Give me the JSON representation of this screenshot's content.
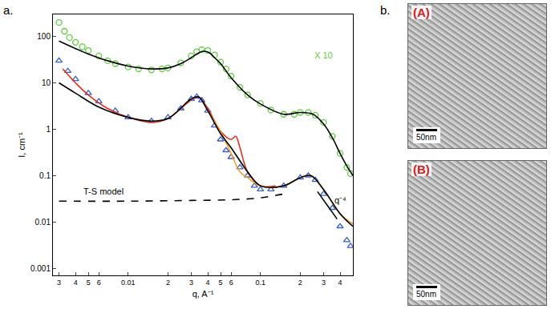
{
  "chart_data": {
    "type": "scatter",
    "log": true,
    "grid": false,
    "x_label": "q, A⁻¹",
    "y_label": "I, cm⁻¹",
    "xlim": [
      0.0027,
      0.5
    ],
    "ylim": [
      0.0007,
      300
    ],
    "xticks": [
      {
        "value": 0.003,
        "label": "3"
      },
      {
        "value": 0.004,
        "label": "4"
      },
      {
        "value": 0.005,
        "label": "5"
      },
      {
        "value": 0.006,
        "label": "6"
      },
      0.01,
      {
        "value": 0.02,
        "label": "2"
      },
      {
        "value": 0.03,
        "label": "3"
      },
      {
        "value": 0.04,
        "label": "4"
      },
      {
        "value": 0.05,
        "label": "5"
      },
      {
        "value": 0.06,
        "label": "6"
      },
      0.1,
      {
        "value": 0.2,
        "label": "2"
      },
      {
        "value": 0.3,
        "label": "3"
      },
      {
        "value": 0.4,
        "label": "4"
      }
    ],
    "yticks": [
      0.001,
      0.01,
      0.1,
      1,
      10,
      100
    ],
    "series": [
      {
        "type": "scatter",
        "marker": "circle-open",
        "color": "#5ccf3a",
        "x": [
          0.003,
          0.0033,
          0.0036,
          0.004,
          0.0045,
          0.005,
          0.006,
          0.007,
          0.008,
          0.01,
          0.012,
          0.015,
          0.018,
          0.02,
          0.025,
          0.03,
          0.033,
          0.036,
          0.04,
          0.045,
          0.05,
          0.055,
          0.06,
          0.07,
          0.08,
          0.1,
          0.12,
          0.15,
          0.18,
          0.2,
          0.23,
          0.26,
          0.3,
          0.35,
          0.4,
          0.45,
          0.48
        ],
        "values": [
          200,
          130,
          95,
          75,
          60,
          50,
          38,
          30,
          26,
          22,
          20,
          19,
          20,
          21,
          27,
          38,
          47,
          52,
          50,
          40,
          28,
          20,
          14,
          8,
          5.5,
          3.6,
          2.6,
          2.1,
          2.1,
          2.3,
          2.3,
          2.0,
          1.4,
          0.7,
          0.3,
          0.15,
          0.11
        ]
      },
      {
        "type": "line",
        "line_style": "solid",
        "color": "#000000",
        "x": [
          0.003,
          0.004,
          0.005,
          0.007,
          0.01,
          0.015,
          0.02,
          0.025,
          0.03,
          0.034,
          0.037,
          0.041,
          0.045,
          0.05,
          0.06,
          0.08,
          0.1,
          0.15,
          0.2,
          0.25,
          0.3,
          0.35,
          0.4,
          0.45,
          0.5
        ],
        "values": [
          80,
          55,
          42,
          30,
          23,
          20,
          21,
          26,
          35,
          44,
          48,
          45,
          35,
          26,
          13,
          5.5,
          3.5,
          2.1,
          2.3,
          2.1,
          1.3,
          0.65,
          0.3,
          0.16,
          0.1
        ]
      },
      {
        "type": "scatter",
        "marker": "triangle-up-open",
        "color": "#3a5fd0",
        "x": [
          0.003,
          0.0035,
          0.004,
          0.005,
          0.006,
          0.008,
          0.01,
          0.015,
          0.02,
          0.025,
          0.03,
          0.033,
          0.036,
          0.04,
          0.045,
          0.05,
          0.055,
          0.06,
          0.07,
          0.08,
          0.09,
          0.1,
          0.12,
          0.15,
          0.2,
          0.23,
          0.26,
          0.3,
          0.35,
          0.4,
          0.45,
          0.48
        ],
        "values": [
          30,
          18,
          12,
          6,
          4,
          2.5,
          1.8,
          1.5,
          1.8,
          2.8,
          4.5,
          5,
          4.2,
          2.5,
          1.2,
          0.6,
          0.35,
          0.25,
          0.15,
          0.1,
          0.06,
          0.05,
          0.05,
          0.06,
          0.09,
          0.1,
          0.08,
          0.04,
          0.02,
          0.008,
          0.004,
          0.003
        ]
      },
      {
        "type": "line",
        "line_style": "solid",
        "color": "#e03020",
        "x": [
          0.0032,
          0.004,
          0.005,
          0.007,
          0.01,
          0.015,
          0.02,
          0.03,
          0.034,
          0.04,
          0.05,
          0.06,
          0.065,
          0.07,
          0.08,
          0.1,
          0.13
        ],
        "values": [
          20,
          10,
          5.5,
          2.8,
          1.8,
          1.4,
          1.7,
          4.3,
          5,
          2.8,
          0.9,
          0.6,
          0.7,
          0.4,
          0.12,
          0.06,
          0.06
        ]
      },
      {
        "type": "line",
        "line_style": "solid",
        "color": "#f0a030",
        "x": [
          0.04,
          0.05,
          0.06,
          0.07,
          0.08,
          0.1,
          0.15,
          0.2,
          0.24,
          0.3,
          0.4,
          0.5
        ],
        "values": [
          2.5,
          0.9,
          0.3,
          0.12,
          0.09,
          0.06,
          0.06,
          0.09,
          0.1,
          0.05,
          0.015,
          0.009
        ]
      },
      {
        "type": "line",
        "line_style": "solid",
        "color": "#000000",
        "x": [
          0.003,
          0.004,
          0.006,
          0.01,
          0.015,
          0.02,
          0.03,
          0.034,
          0.04,
          0.05,
          0.06,
          0.08,
          0.1,
          0.15,
          0.2,
          0.24,
          0.3,
          0.4,
          0.5
        ],
        "values": [
          10,
          6,
          3,
          1.8,
          1.5,
          1.7,
          4.5,
          5,
          2.5,
          0.8,
          0.4,
          0.12,
          0.06,
          0.06,
          0.09,
          0.1,
          0.05,
          0.015,
          0.008
        ]
      },
      {
        "type": "line",
        "line_style": "dash",
        "color": "#000000",
        "x": [
          0.003,
          0.01,
          0.03,
          0.06,
          0.1,
          0.15
        ],
        "values": [
          0.028,
          0.028,
          0.029,
          0.03,
          0.033,
          0.04
        ]
      },
      {
        "type": "line",
        "line_style": "solid",
        "color": "#000000",
        "x": [
          0.27,
          0.38
        ],
        "values": [
          0.045,
          0.0115
        ]
      }
    ],
    "annotations": [
      {
        "text": "X 10",
        "x": 0.3,
        "y": 40,
        "color": "#5ccf3a"
      },
      {
        "text": "T-S model",
        "x": 0.0065,
        "y": 0.045,
        "color": "#000000"
      },
      {
        "text": "q⁻⁴",
        "x": 0.4,
        "y": 0.03,
        "color": "#000000"
      }
    ]
  },
  "panel_labels": [
    "a.",
    "b."
  ],
  "images": [
    {
      "label": "(A)",
      "scale_bar": "50nm"
    },
    {
      "label": "(B)",
      "scale_bar": "50nm"
    }
  ]
}
